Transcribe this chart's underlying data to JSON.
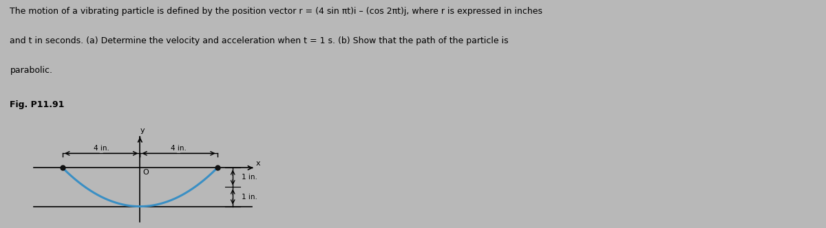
{
  "text_lines": [
    "The motion of a vibrating particle is defined by the position vector r = (4 sin πt)i – (cos 2πt)j, where r is expressed in inches",
    "and t in seconds. (a) Determine the velocity and acceleration when t = 1 s. (b) Show that the path of the particle is",
    "parabolic."
  ],
  "fig_label": "Fig. P11.91",
  "bg_color": "#b8b8b8",
  "text_color": "#000000",
  "curve_color": "#3a8fc4",
  "axis_color": "#000000",
  "dim_line_color": "#000000",
  "dim_label_4in_left": "4 in.",
  "dim_label_4in_right": "4 in.",
  "dim_label_1in_top": "1 in.",
  "dim_label_1in_bot": "1 in.",
  "origin_label": "O",
  "x_axis_label": "x",
  "y_axis_label": "y"
}
